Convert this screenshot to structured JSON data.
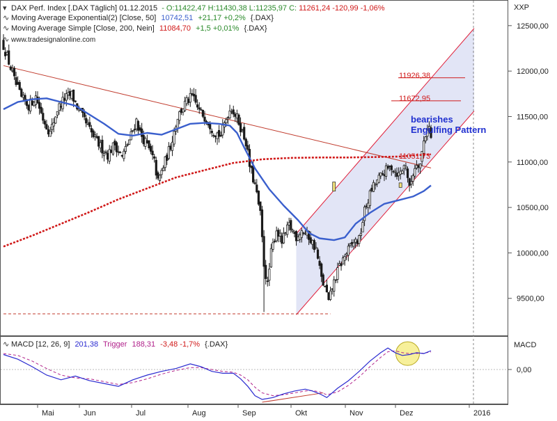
{
  "header": {
    "line1": {
      "name": "DAX Perf. Index [.DAX  Täglich] 01.12.2015",
      "values": "- O:11422,47 H:11430,38 L:11235,97 C:",
      "change": "11261,24 -120,99 -1,06%"
    },
    "line2": {
      "name": "Moving Average Exponential(2) [Close, 50]",
      "value": "10742,51",
      "change": "+21,17 +0,2%",
      "tail": "{.DAX}"
    },
    "line3": {
      "name": "Moving Average Simple [Close, 200, Nein]",
      "value": "11084,70",
      "change": "+1,5 +0,01%",
      "tail": "{.DAX}"
    },
    "website": "www.tradesignalonline.com",
    "xxp_label": "XXP"
  },
  "macd_header": {
    "name": "MACD [12, 26, 9]",
    "value": "201,38",
    "trigger_label": "Trigger",
    "trigger_value": "188,31",
    "change": "-3,48 -1,7%",
    "tail": "{.DAX}"
  },
  "macd_axis_label": "MACD",
  "annotations": {
    "bearish_line1": "bearishes",
    "bearish_line2": "Engulfing Pattern",
    "level_11926": "11926,38",
    "level_11672": "11672,95",
    "level_11051": "11051,73"
  },
  "colors": {
    "candle": "#1a1a1a",
    "ema50": "#3a5fcd",
    "sma200": "#d01818",
    "trendline": "#c0392b",
    "channel_fill": "#dde1f5",
    "channel_line": "#e0203a",
    "macd_line": "#2a2ad0",
    "trigger_line": "#b0208a",
    "highlight_circle": "#f7f09a",
    "annotation_blue": "#1f2fcf",
    "level_red": "#d01818"
  },
  "chart_data": [
    {
      "type": "candlestick",
      "title": "DAX Perf. Index [.DAX Täglich]",
      "ylim": [
        9100,
        12560
      ],
      "y_ticks": [
        "9500,00",
        "10000,00",
        "10500,00",
        "11000,00",
        "11500,00",
        "12000,00",
        "12500,00"
      ],
      "x_tick_labels": [
        "Mai",
        "Jun",
        "Jul",
        "Aug",
        "Sep",
        "Okt",
        "Nov",
        "Dez",
        "2016"
      ],
      "grid": false,
      "close_path": [
        [
          0,
          12280
        ],
        [
          3,
          12100
        ],
        [
          6,
          11900
        ],
        [
          10,
          11700
        ],
        [
          14,
          11620
        ],
        [
          18,
          11720
        ],
        [
          22,
          11480
        ],
        [
          26,
          11320
        ],
        [
          30,
          11580
        ],
        [
          34,
          11700
        ],
        [
          38,
          11740
        ],
        [
          42,
          11560
        ],
        [
          46,
          11420
        ],
        [
          50,
          11280
        ],
        [
          54,
          11170
        ],
        [
          58,
          11080
        ],
        [
          62,
          11200
        ],
        [
          66,
          11050
        ],
        [
          70,
          11240
        ],
        [
          74,
          11460
        ],
        [
          76,
          11320
        ],
        [
          80,
          11180
        ],
        [
          84,
          11000
        ],
        [
          86,
          10780
        ],
        [
          89,
          10950
        ],
        [
          93,
          11180
        ],
        [
          97,
          11500
        ],
        [
          101,
          11640
        ],
        [
          105,
          11720
        ],
        [
          109,
          11560
        ],
        [
          113,
          11480
        ],
        [
          117,
          11340
        ],
        [
          121,
          11290
        ],
        [
          125,
          11540
        ],
        [
          127,
          11600
        ],
        [
          131,
          11440
        ],
        [
          135,
          11220
        ],
        [
          137,
          10960
        ],
        [
          140,
          10740
        ],
        [
          143,
          10420
        ],
        [
          145,
          9880
        ],
        [
          147,
          9640
        ],
        [
          149,
          10000
        ],
        [
          152,
          10260
        ],
        [
          155,
          10120
        ],
        [
          159,
          10300
        ],
        [
          163,
          10180
        ],
        [
          166,
          10250
        ],
        [
          170,
          10180
        ],
        [
          174,
          10040
        ],
        [
          177,
          9720
        ],
        [
          180,
          9550
        ],
        [
          181,
          9450
        ],
        [
          183,
          9620
        ],
        [
          187,
          9850
        ],
        [
          191,
          10000
        ],
        [
          195,
          10120
        ],
        [
          198,
          10140
        ],
        [
          201,
          10460
        ],
        [
          205,
          10700
        ],
        [
          208,
          10790
        ],
        [
          212,
          10890
        ],
        [
          216,
          10950
        ],
        [
          220,
          10860
        ],
        [
          224,
          10980
        ],
        [
          226,
          10700
        ],
        [
          228,
          10880
        ],
        [
          230,
          11000
        ],
        [
          232,
          10980
        ],
        [
          234,
          11230
        ],
        [
          236,
          11380
        ],
        [
          237,
          11382
        ],
        [
          238,
          11261
        ]
      ],
      "series": [
        {
          "name": "Moving Average Exponential(2) [Close, 50]",
          "points": [
            [
              0,
              11580
            ],
            [
              8,
              11660
            ],
            [
              16,
              11690
            ],
            [
              24,
              11700
            ],
            [
              32,
              11660
            ],
            [
              40,
              11620
            ],
            [
              48,
              11520
            ],
            [
              56,
              11420
            ],
            [
              64,
              11310
            ],
            [
              72,
              11290
            ],
            [
              80,
              11320
            ],
            [
              88,
              11300
            ],
            [
              96,
              11360
            ],
            [
              104,
              11420
            ],
            [
              112,
              11430
            ],
            [
              120,
              11420
            ],
            [
              126,
              11400
            ],
            [
              130,
              11320
            ],
            [
              134,
              11160
            ],
            [
              140,
              10930
            ],
            [
              148,
              10700
            ],
            [
              156,
              10520
            ],
            [
              164,
              10360
            ],
            [
              170,
              10220
            ],
            [
              176,
              10160
            ],
            [
              184,
              10140
            ],
            [
              190,
              10170
            ],
            [
              196,
              10320
            ],
            [
              204,
              10440
            ],
            [
              212,
              10540
            ],
            [
              220,
              10580
            ],
            [
              228,
              10620
            ],
            [
              234,
              10680
            ],
            [
              238,
              10742
            ]
          ]
        },
        {
          "name": "Moving Average Simple [Close, 200, Nein]",
          "points": [
            [
              0,
              10070
            ],
            [
              16,
              10190
            ],
            [
              32,
              10320
            ],
            [
              48,
              10450
            ],
            [
              64,
              10590
            ],
            [
              80,
              10710
            ],
            [
              96,
              10830
            ],
            [
              112,
              10910
            ],
            [
              128,
              10990
            ],
            [
              144,
              11030
            ],
            [
              160,
              11045
            ],
            [
              176,
              11050
            ],
            [
              192,
              11050
            ],
            [
              208,
              11055
            ],
            [
              220,
              11060
            ],
            [
              230,
              11075
            ],
            [
              238,
              11084
            ]
          ]
        }
      ],
      "overlays": {
        "downtrend_line": [
          [
            0,
            12060
          ],
          [
            238,
            10980
          ]
        ],
        "channel_bottom": [
          [
            163,
            9320
          ],
          [
            262,
            11560
          ]
        ],
        "channel_top": [
          [
            163,
            10210
          ],
          [
            262,
            12470
          ]
        ],
        "support_line": [
          [
            0,
            9330
          ],
          [
            182,
            9330
          ]
        ],
        "level_lines": [
          "11926,38",
          "11672,95",
          "11051,73"
        ]
      },
      "annotations": [
        "bearishes",
        "Engulfing Pattern",
        "11926,38",
        "11672,95",
        "11051,73"
      ]
    },
    {
      "type": "line",
      "title": "MACD [12, 26, 9]",
      "ylim": [
        -350,
        320
      ],
      "y_ticks": [
        "0,00"
      ],
      "series": [
        {
          "name": "MACD",
          "points": [
            [
              0,
              160
            ],
            [
              8,
              110
            ],
            [
              16,
              30
            ],
            [
              24,
              -60
            ],
            [
              32,
              -110
            ],
            [
              40,
              -70
            ],
            [
              48,
              -120
            ],
            [
              56,
              -150
            ],
            [
              64,
              -180
            ],
            [
              72,
              -110
            ],
            [
              80,
              -60
            ],
            [
              88,
              -20
            ],
            [
              96,
              10
            ],
            [
              104,
              60
            ],
            [
              110,
              30
            ],
            [
              116,
              -20
            ],
            [
              122,
              -40
            ],
            [
              128,
              -40
            ],
            [
              132,
              -100
            ],
            [
              136,
              -180
            ],
            [
              140,
              -280
            ],
            [
              144,
              -320
            ],
            [
              150,
              -300
            ],
            [
              156,
              -260
            ],
            [
              162,
              -230
            ],
            [
              168,
              -210
            ],
            [
              172,
              -230
            ],
            [
              176,
              -260
            ],
            [
              180,
              -300
            ],
            [
              186,
              -200
            ],
            [
              192,
              -120
            ],
            [
              198,
              -20
            ],
            [
              204,
              90
            ],
            [
              210,
              180
            ],
            [
              214,
              230
            ],
            [
              218,
              180
            ],
            [
              222,
              150
            ],
            [
              226,
              160
            ],
            [
              230,
              180
            ],
            [
              234,
              170
            ],
            [
              238,
              201
            ]
          ]
        },
        {
          "name": "Trigger",
          "points": [
            [
              0,
              170
            ],
            [
              8,
              150
            ],
            [
              16,
              90
            ],
            [
              24,
              10
            ],
            [
              32,
              -60
            ],
            [
              40,
              -90
            ],
            [
              48,
              -100
            ],
            [
              56,
              -130
            ],
            [
              64,
              -160
            ],
            [
              72,
              -140
            ],
            [
              80,
              -100
            ],
            [
              88,
              -50
            ],
            [
              96,
              -10
            ],
            [
              104,
              20
            ],
            [
              110,
              20
            ],
            [
              116,
              0
            ],
            [
              122,
              -20
            ],
            [
              128,
              -30
            ],
            [
              132,
              -60
            ],
            [
              136,
              -110
            ],
            [
              140,
              -190
            ],
            [
              144,
              -250
            ],
            [
              150,
              -280
            ],
            [
              156,
              -270
            ],
            [
              162,
              -250
            ],
            [
              168,
              -230
            ],
            [
              172,
              -225
            ],
            [
              176,
              -240
            ],
            [
              180,
              -270
            ],
            [
              186,
              -240
            ],
            [
              192,
              -170
            ],
            [
              198,
              -80
            ],
            [
              204,
              30
            ],
            [
              210,
              130
            ],
            [
              214,
              190
            ],
            [
              218,
              200
            ],
            [
              222,
              180
            ],
            [
              226,
              170
            ],
            [
              230,
              172
            ],
            [
              234,
              175
            ],
            [
              238,
              188
            ]
          ]
        }
      ],
      "overlays": {
        "divergence_line": [
          [
            144,
            -350
          ],
          [
            178,
            -250
          ]
        ],
        "highlight_circle_at": [
          225,
          170
        ]
      }
    }
  ]
}
